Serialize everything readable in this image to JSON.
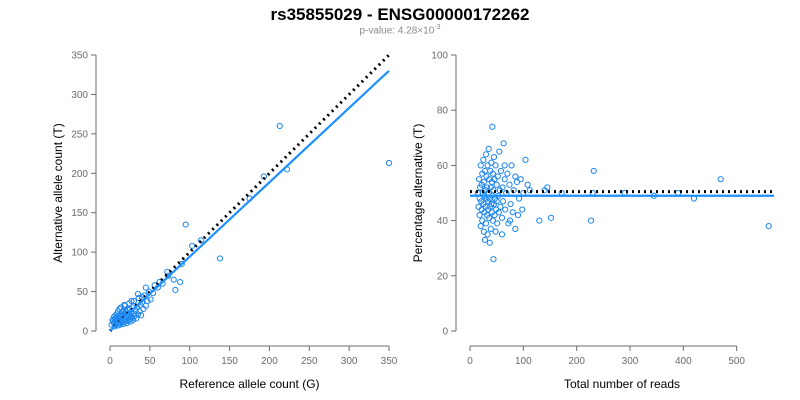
{
  "title": "rs35855029 - ENSG00000172262",
  "subtitle": {
    "prefix": "p-value: 4.28×10",
    "exponent": "-3"
  },
  "colors": {
    "points": "#1c86ee",
    "fit": "#1e90ff",
    "reference": "#000000",
    "axis": "#6b6b6b"
  },
  "chart_data": [
    {
      "type": "scatter",
      "xlabel": "Reference allele count (G)",
      "ylabel": "Alternative allele count (T)",
      "xlim": [
        0,
        350
      ],
      "ylim": [
        0,
        350
      ],
      "xticks": [
        0,
        50,
        100,
        150,
        200,
        250,
        300,
        350
      ],
      "yticks": [
        0,
        50,
        100,
        150,
        200,
        250,
        300,
        350
      ],
      "points": [
        [
          2,
          8
        ],
        [
          3,
          14
        ],
        [
          4,
          12
        ],
        [
          5,
          10
        ],
        [
          5,
          18
        ],
        [
          6,
          6
        ],
        [
          6,
          15
        ],
        [
          7,
          20
        ],
        [
          7,
          11
        ],
        [
          8,
          9
        ],
        [
          8,
          17
        ],
        [
          9,
          22
        ],
        [
          9,
          13
        ],
        [
          10,
          7
        ],
        [
          10,
          16
        ],
        [
          10,
          25
        ],
        [
          11,
          12
        ],
        [
          11,
          19
        ],
        [
          12,
          10
        ],
        [
          12,
          28
        ],
        [
          12,
          15
        ],
        [
          13,
          21
        ],
        [
          13,
          8
        ],
        [
          14,
          14
        ],
        [
          14,
          30
        ],
        [
          15,
          11
        ],
        [
          15,
          18
        ],
        [
          15,
          24
        ],
        [
          16,
          13
        ],
        [
          16,
          20
        ],
        [
          17,
          9
        ],
        [
          17,
          26
        ],
        [
          18,
          15
        ],
        [
          18,
          22
        ],
        [
          19,
          12
        ],
        [
          19,
          32
        ],
        [
          20,
          17
        ],
        [
          20,
          14
        ],
        [
          20,
          25
        ],
        [
          21,
          10
        ],
        [
          21,
          20
        ],
        [
          22,
          16
        ],
        [
          22,
          27
        ],
        [
          23,
          13
        ],
        [
          23,
          22
        ],
        [
          24,
          18
        ],
        [
          24,
          35
        ],
        [
          25,
          15
        ],
        [
          25,
          28
        ],
        [
          26,
          12
        ],
        [
          26,
          20
        ],
        [
          27,
          24
        ],
        [
          28,
          17
        ],
        [
          28,
          30
        ],
        [
          29,
          14
        ],
        [
          30,
          22
        ],
        [
          30,
          38
        ],
        [
          31,
          19
        ],
        [
          32,
          26
        ],
        [
          33,
          16
        ],
        [
          34,
          30
        ],
        [
          35,
          21
        ],
        [
          36,
          42
        ],
        [
          37,
          25
        ],
        [
          38,
          33
        ],
        [
          39,
          20
        ],
        [
          40,
          36
        ],
        [
          42,
          28
        ],
        [
          43,
          45
        ],
        [
          45,
          32
        ],
        [
          47,
          38
        ],
        [
          49,
          50
        ],
        [
          51,
          40
        ],
        [
          54,
          48
        ],
        [
          56,
          58
        ],
        [
          60,
          55
        ],
        [
          62,
          62
        ],
        [
          66,
          60
        ],
        [
          72,
          75
        ],
        [
          73,
          70
        ],
        [
          80,
          65
        ],
        [
          82,
          52
        ],
        [
          88,
          62
        ],
        [
          90,
          85
        ],
        [
          95,
          135
        ],
        [
          103,
          108
        ],
        [
          114,
          115
        ],
        [
          138,
          92
        ],
        [
          175,
          168
        ],
        [
          193,
          196
        ],
        [
          213,
          260
        ],
        [
          222,
          205
        ],
        [
          350,
          213
        ],
        [
          18,
          33
        ],
        [
          27,
          38
        ],
        [
          35,
          47
        ],
        [
          40,
          43
        ],
        [
          45,
          55
        ]
      ],
      "fit_line": [
        [
          0,
          0
        ],
        [
          350,
          330
        ]
      ],
      "reference_line": [
        [
          0,
          0
        ],
        [
          350,
          350
        ]
      ]
    },
    {
      "type": "scatter",
      "xlabel": "Total number of reads",
      "ylabel": "Percentage alternative (T)",
      "xlim": [
        0,
        570
      ],
      "ylim": [
        0,
        100
      ],
      "xticks": [
        0,
        100,
        200,
        300,
        400,
        500
      ],
      "yticks": [
        0,
        20,
        40,
        60,
        80,
        100
      ],
      "points": [
        [
          15,
          50
        ],
        [
          16,
          45
        ],
        [
          17,
          55
        ],
        [
          18,
          48
        ],
        [
          18,
          42
        ],
        [
          19,
          52
        ],
        [
          20,
          60
        ],
        [
          20,
          38
        ],
        [
          21,
          47
        ],
        [
          22,
          53
        ],
        [
          22,
          44
        ],
        [
          23,
          57
        ],
        [
          23,
          40
        ],
        [
          24,
          50
        ],
        [
          25,
          46
        ],
        [
          25,
          62
        ],
        [
          26,
          36
        ],
        [
          26,
          54
        ],
        [
          27,
          49
        ],
        [
          27,
          43
        ],
        [
          28,
          58
        ],
        [
          28,
          33
        ],
        [
          29,
          51
        ],
        [
          29,
          45
        ],
        [
          30,
          64
        ],
        [
          30,
          39
        ],
        [
          31,
          48
        ],
        [
          31,
          56
        ],
        [
          32,
          42
        ],
        [
          32,
          52
        ],
        [
          33,
          35
        ],
        [
          33,
          60
        ],
        [
          34,
          47
        ],
        [
          34,
          44
        ],
        [
          35,
          66
        ],
        [
          35,
          50
        ],
        [
          36,
          41
        ],
        [
          36,
          55
        ],
        [
          37,
          32
        ],
        [
          37,
          48
        ],
        [
          38,
          58
        ],
        [
          38,
          45
        ],
        [
          39,
          52
        ],
        [
          39,
          37
        ],
        [
          40,
          61
        ],
        [
          40,
          46
        ],
        [
          41,
          43
        ],
        [
          41,
          54
        ],
        [
          42,
          74
        ],
        [
          42,
          49
        ],
        [
          43,
          40
        ],
        [
          43,
          57
        ],
        [
          44,
          26
        ],
        [
          44,
          51
        ],
        [
          45,
          46
        ],
        [
          45,
          63
        ],
        [
          46,
          42
        ],
        [
          46,
          55
        ],
        [
          47,
          48
        ],
        [
          48,
          36
        ],
        [
          48,
          60
        ],
        [
          49,
          44
        ],
        [
          50,
          53
        ],
        [
          50,
          47
        ],
        [
          51,
          39
        ],
        [
          52,
          56
        ],
        [
          53,
          49
        ],
        [
          54,
          43
        ],
        [
          55,
          65
        ],
        [
          56,
          51
        ],
        [
          57,
          45
        ],
        [
          58,
          58
        ],
        [
          60,
          41
        ],
        [
          61,
          52
        ],
        [
          62,
          47
        ],
        [
          63,
          68
        ],
        [
          65,
          55
        ],
        [
          66,
          44
        ],
        [
          68,
          50
        ],
        [
          70,
          57
        ],
        [
          72,
          39
        ],
        [
          74,
          53
        ],
        [
          76,
          46
        ],
        [
          78,
          60
        ],
        [
          80,
          43
        ],
        [
          82,
          51
        ],
        [
          85,
          37
        ],
        [
          88,
          54
        ],
        [
          90,
          42
        ],
        [
          92,
          48
        ],
        [
          95,
          55
        ],
        [
          98,
          44
        ],
        [
          100,
          50
        ],
        [
          104,
          62
        ],
        [
          108,
          53
        ],
        [
          112,
          51
        ],
        [
          130,
          40
        ],
        [
          140,
          51
        ],
        [
          145,
          52
        ],
        [
          152,
          41
        ],
        [
          172,
          50
        ],
        [
          230,
          50
        ],
        [
          232,
          58
        ],
        [
          227,
          40
        ],
        [
          290,
          50
        ],
        [
          345,
          49
        ],
        [
          390,
          50
        ],
        [
          420,
          48
        ],
        [
          470,
          55
        ],
        [
          560,
          38
        ],
        [
          60,
          35
        ],
        [
          65,
          60
        ],
        [
          75,
          40
        ],
        [
          85,
          56
        ]
      ],
      "fit_line": [
        [
          0,
          49
        ],
        [
          570,
          49
        ]
      ],
      "reference_line": [
        [
          0,
          50.5
        ],
        [
          570,
          50.5
        ]
      ]
    }
  ]
}
